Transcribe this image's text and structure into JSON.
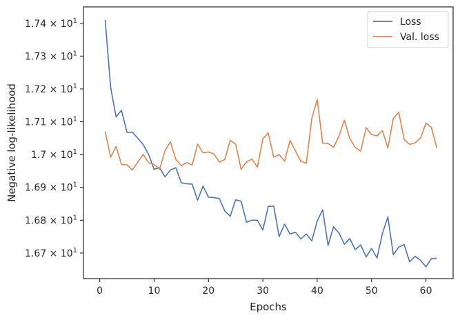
{
  "chart_data": {
    "type": "line",
    "xlabel": "Epochs",
    "ylabel": "Negative log-likelihood",
    "xlim": [
      -3,
      65
    ],
    "ylim": [
      16.622,
      17.45
    ],
    "x_ticks": [
      0,
      10,
      20,
      30,
      40,
      50,
      60
    ],
    "y_ticks": [
      {
        "value": 16.7,
        "mantissa": "1.67",
        "base": "10",
        "exp": "1"
      },
      {
        "value": 16.8,
        "mantissa": "1.68",
        "base": "10",
        "exp": "1"
      },
      {
        "value": 16.9,
        "mantissa": "1.69",
        "base": "10",
        "exp": "1"
      },
      {
        "value": 17.0,
        "mantissa": "1.7",
        "base": "10",
        "exp": "1"
      },
      {
        "value": 17.1,
        "mantissa": "1.71",
        "base": "10",
        "exp": "1"
      },
      {
        "value": 17.2,
        "mantissa": "1.72",
        "base": "10",
        "exp": "1"
      },
      {
        "value": 17.3,
        "mantissa": "1.73",
        "base": "10",
        "exp": "1"
      },
      {
        "value": 17.4,
        "mantissa": "1.74",
        "base": "10",
        "exp": "1"
      }
    ],
    "grid": false,
    "legend_position": "top-right",
    "x": [
      1,
      2,
      3,
      4,
      5,
      6,
      7,
      8,
      9,
      10,
      11,
      12,
      13,
      14,
      15,
      16,
      17,
      18,
      19,
      20,
      21,
      22,
      23,
      24,
      25,
      26,
      27,
      28,
      29,
      30,
      31,
      32,
      33,
      34,
      35,
      36,
      37,
      38,
      39,
      40,
      41,
      42,
      43,
      44,
      45,
      46,
      47,
      48,
      49,
      50,
      51,
      52,
      53,
      54,
      55,
      56,
      57,
      58,
      59,
      60,
      61,
      62
    ],
    "series": [
      {
        "name": "Loss",
        "color": "#4c72b0",
        "values": [
          17.41,
          17.205,
          17.115,
          17.135,
          17.068,
          17.068,
          17.05,
          17.03,
          17.0,
          16.955,
          16.96,
          16.932,
          16.953,
          16.96,
          16.914,
          16.911,
          16.91,
          16.861,
          16.904,
          16.87,
          16.869,
          16.866,
          16.828,
          16.812,
          16.862,
          16.858,
          16.794,
          16.8,
          16.8,
          16.77,
          16.842,
          16.843,
          16.75,
          16.788,
          16.758,
          16.763,
          16.743,
          16.758,
          16.737,
          16.797,
          16.832,
          16.723,
          16.78,
          16.761,
          16.727,
          16.744,
          16.71,
          16.725,
          16.688,
          16.714,
          16.685,
          16.76,
          16.81,
          16.695,
          16.718,
          16.726,
          16.673,
          16.69,
          16.678,
          16.658,
          16.683,
          16.684
        ]
      },
      {
        "name": "Val. loss",
        "color": "#dd8452",
        "values": [
          17.07,
          16.992,
          17.025,
          16.97,
          16.969,
          16.953,
          16.977,
          17.0,
          16.975,
          16.97,
          16.955,
          17.012,
          17.039,
          16.985,
          16.966,
          16.976,
          16.968,
          17.032,
          17.005,
          17.008,
          17.002,
          16.977,
          16.985,
          17.043,
          17.032,
          16.955,
          16.978,
          16.986,
          16.962,
          17.048,
          17.066,
          16.992,
          17.0,
          16.98,
          17.043,
          17.011,
          16.979,
          16.974,
          17.11,
          17.168,
          17.035,
          17.034,
          17.022,
          17.056,
          17.105,
          17.048,
          17.022,
          17.01,
          17.082,
          17.061,
          17.057,
          17.073,
          17.02,
          17.11,
          17.129,
          17.046,
          17.031,
          17.036,
          17.05,
          17.096,
          17.083,
          17.02
        ]
      }
    ]
  }
}
